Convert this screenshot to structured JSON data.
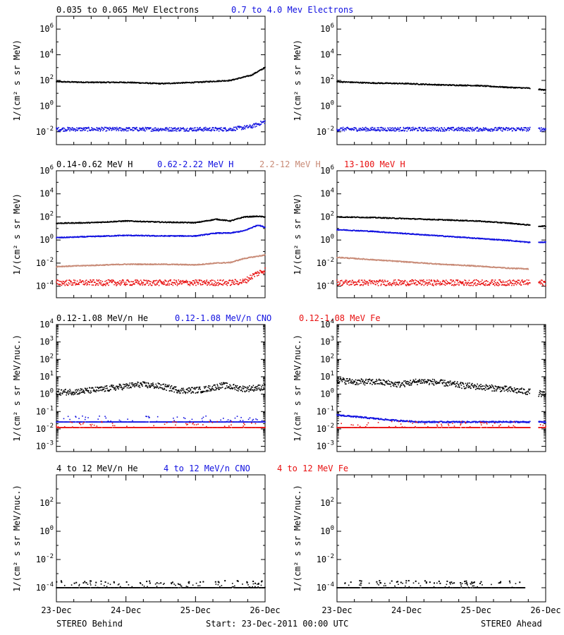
{
  "footer": {
    "left": "STEREO Behind",
    "center": "Start: 23-Dec-2011 00:00 UTC",
    "right": "STEREO Ahead"
  },
  "colors": {
    "black": "#000000",
    "blue": "#1010e0",
    "tan": "#c88a76",
    "red": "#e81010"
  },
  "x_tick_labels": [
    "23-Dec",
    "24-Dec",
    "25-Dec",
    "26-Dec"
  ],
  "chart_data": [
    {
      "type": "scatter",
      "spacecraft": "STEREO Behind",
      "row": 1,
      "ylabel": "1/(cm² s sr MeV)",
      "yscale": "log",
      "ylim_exp": [
        -3,
        7
      ],
      "ytick_exps": [
        -2,
        0,
        2,
        4,
        6
      ],
      "xlim_days": [
        0,
        3.0
      ],
      "series": [
        {
          "name": "0.035 to 0.065 MeV Electrons",
          "color": "black",
          "x": [
            0,
            0.5,
            1.0,
            1.5,
            2.0,
            2.5,
            2.8,
            3.0
          ],
          "y_exp": [
            1.9,
            1.85,
            1.85,
            1.75,
            1.85,
            2.0,
            2.4,
            3.0
          ]
        },
        {
          "name": "0.7 to 4.0 Mev Electrons",
          "color": "blue",
          "x": [
            0,
            0.5,
            1.0,
            1.5,
            2.0,
            2.5,
            2.8,
            3.0
          ],
          "y_exp": [
            -1.8,
            -1.8,
            -1.8,
            -1.8,
            -1.8,
            -1.8,
            -1.6,
            -1.2
          ]
        }
      ]
    },
    {
      "type": "scatter",
      "spacecraft": "STEREO Ahead",
      "row": 1,
      "ylabel": "1/(cm² s sr MeV)",
      "yscale": "log",
      "ylim_exp": [
        -3,
        7
      ],
      "ytick_exps": [
        -2,
        0,
        2,
        4,
        6
      ],
      "xlim_days": [
        0,
        3.0
      ],
      "series": [
        {
          "name": "0.035 to 0.065 MeV Electrons",
          "color": "black",
          "x": [
            0,
            0.5,
            1.0,
            1.5,
            2.0,
            2.5,
            2.75,
            2.9,
            3.0
          ],
          "y_exp": [
            1.9,
            1.8,
            1.75,
            1.65,
            1.6,
            1.45,
            1.4,
            1.3,
            1.25
          ]
        },
        {
          "name": "0.7 to 4.0 Mev Electrons",
          "color": "blue",
          "x": [
            0,
            0.5,
            1.0,
            1.5,
            2.0,
            2.5,
            2.75,
            2.9,
            3.0
          ],
          "y_exp": [
            -1.8,
            -1.8,
            -1.8,
            -1.8,
            -1.8,
            -1.8,
            -1.8,
            -1.8,
            -1.8
          ]
        }
      ]
    },
    {
      "type": "scatter",
      "spacecraft": "STEREO Behind",
      "row": 2,
      "ylabel": "1/(cm² s sr MeV)",
      "yscale": "log",
      "ylim_exp": [
        -5,
        6
      ],
      "ytick_exps": [
        -4,
        -2,
        0,
        2,
        4,
        6
      ],
      "xlim_days": [
        0,
        3.0
      ],
      "series": [
        {
          "name": "0.14-0.62 MeV H",
          "color": "black",
          "x": [
            0,
            0.5,
            1.0,
            1.5,
            2.0,
            2.3,
            2.5,
            2.7,
            2.9,
            3.0
          ],
          "y_exp": [
            1.45,
            1.5,
            1.65,
            1.55,
            1.5,
            1.8,
            1.65,
            2.0,
            2.05,
            2.0
          ]
        },
        {
          "name": "0.62-2.22 MeV H",
          "color": "blue",
          "x": [
            0,
            0.5,
            1.0,
            1.5,
            2.0,
            2.3,
            2.5,
            2.7,
            2.9,
            3.0
          ],
          "y_exp": [
            0.2,
            0.3,
            0.4,
            0.35,
            0.35,
            0.6,
            0.6,
            0.8,
            1.3,
            1.1
          ]
        },
        {
          "name": "2.2-12 MeV H",
          "color": "tan",
          "x": [
            0,
            0.5,
            1.0,
            1.5,
            2.0,
            2.3,
            2.5,
            2.7,
            2.9,
            3.0
          ],
          "y_exp": [
            -2.3,
            -2.2,
            -2.1,
            -2.1,
            -2.15,
            -2.0,
            -1.95,
            -1.6,
            -1.4,
            -1.3
          ]
        },
        {
          "name": "13-100 MeV H",
          "color": "red",
          "x": [
            0,
            0.5,
            1.0,
            1.5,
            2.0,
            2.5,
            2.7,
            2.85,
            3.0
          ],
          "y_exp": [
            -3.7,
            -3.7,
            -3.7,
            -3.7,
            -3.7,
            -3.7,
            -3.6,
            -3.0,
            -2.6
          ]
        }
      ]
    },
    {
      "type": "scatter",
      "spacecraft": "STEREO Ahead",
      "row": 2,
      "ylabel": "1/(cm² s sr MeV)",
      "yscale": "log",
      "ylim_exp": [
        -5,
        6
      ],
      "ytick_exps": [
        -4,
        -2,
        0,
        2,
        4,
        6
      ],
      "xlim_days": [
        0,
        3.0
      ],
      "series": [
        {
          "name": "0.14-0.62 MeV H",
          "color": "black",
          "x": [
            0,
            0.5,
            1.0,
            1.5,
            2.0,
            2.5,
            2.75,
            2.9,
            3.0
          ],
          "y_exp": [
            2.0,
            1.95,
            1.85,
            1.75,
            1.65,
            1.45,
            1.3,
            1.2,
            1.2
          ]
        },
        {
          "name": "0.62-2.22 MeV H",
          "color": "blue",
          "x": [
            0,
            0.5,
            1.0,
            1.5,
            2.0,
            2.5,
            2.75,
            2.9,
            3.0
          ],
          "y_exp": [
            0.9,
            0.75,
            0.55,
            0.35,
            0.15,
            -0.05,
            -0.2,
            -0.2,
            -0.2
          ]
        },
        {
          "name": "2.2-12 MeV H",
          "color": "tan",
          "x": [
            0,
            0.5,
            1.0,
            1.5,
            2.0,
            2.5,
            2.75
          ],
          "y_exp": [
            -1.5,
            -1.7,
            -1.9,
            -2.1,
            -2.25,
            -2.45,
            -2.5
          ]
        },
        {
          "name": "13-100 MeV H",
          "color": "red",
          "x": [
            0,
            0.5,
            1.0,
            1.5,
            2.0,
            2.5,
            2.75,
            2.9,
            3.0
          ],
          "y_exp": [
            -3.7,
            -3.7,
            -3.7,
            -3.7,
            -3.7,
            -3.7,
            -3.7,
            -3.7,
            -3.7
          ]
        }
      ]
    },
    {
      "type": "scatter",
      "spacecraft": "STEREO Behind",
      "row": 3,
      "ylabel": "1/(cm² s sr MeV/nuc.)",
      "yscale": "log",
      "ylim_exp": [
        -3.3,
        4
      ],
      "ytick_exps": [
        -3,
        -2,
        -1,
        0,
        1,
        2,
        3,
        4
      ],
      "xlim_days": [
        0,
        3.0
      ],
      "series": [
        {
          "name": "0.12-1.08 MeV/n He",
          "color": "black",
          "x": [
            0,
            0.3,
            0.6,
            0.9,
            1.2,
            1.5,
            1.8,
            2.1,
            2.4,
            2.7,
            3.0
          ],
          "y_exp": [
            0.1,
            0.15,
            0.25,
            0.4,
            0.55,
            0.45,
            0.2,
            0.25,
            0.5,
            0.3,
            0.4
          ]
        },
        {
          "name": "0.12-1.08 MeV/n CNO",
          "color": "blue",
          "x": [
            0,
            3.0
          ],
          "y_exp": [
            -1.6,
            -1.6
          ]
        },
        {
          "name": "0.12-1.08 MeV Fe",
          "color": "red",
          "x": [
            0,
            3.0
          ],
          "y_exp": [
            -1.92,
            -1.92
          ]
        }
      ]
    },
    {
      "type": "scatter",
      "spacecraft": "STEREO Ahead",
      "row": 3,
      "ylabel": "1/(cm² s sr MeV/nuc.)",
      "yscale": "log",
      "ylim_exp": [
        -3.3,
        4
      ],
      "ytick_exps": [
        -3,
        -2,
        -1,
        0,
        1,
        2,
        3,
        4
      ],
      "xlim_days": [
        0,
        3.0
      ],
      "series": [
        {
          "name": "0.12-1.08 MeV/n He",
          "color": "black",
          "x": [
            0,
            0.3,
            0.6,
            0.9,
            1.2,
            1.5,
            1.8,
            2.1,
            2.4,
            2.7,
            2.85,
            3.0
          ],
          "y_exp": [
            0.8,
            0.7,
            0.7,
            0.55,
            0.75,
            0.65,
            0.5,
            0.4,
            0.3,
            0.15,
            0.1,
            -0.05
          ]
        },
        {
          "name": "0.12-1.08 MeV/n CNO",
          "color": "blue",
          "x": [
            0,
            0.4,
            0.8,
            1.2,
            3.0
          ],
          "y_exp": [
            -1.2,
            -1.35,
            -1.5,
            -1.6,
            -1.6
          ]
        },
        {
          "name": "0.12-1.08 MeV Fe",
          "color": "red",
          "x": [
            0,
            3.0
          ],
          "y_exp": [
            -1.92,
            -1.92
          ]
        }
      ]
    },
    {
      "type": "scatter",
      "spacecraft": "STEREO Behind",
      "row": 4,
      "ylabel": "1/(cm² s sr MeV/nuc.)",
      "yscale": "log",
      "ylim_exp": [
        -5,
        4
      ],
      "ytick_exps": [
        -4,
        -2,
        0,
        2
      ],
      "xlim_days": [
        0,
        3.0
      ],
      "series": [
        {
          "name": "4 to 12 MeV/n He",
          "color": "black",
          "x": [
            0,
            3.0
          ],
          "y_exp": [
            -4.0,
            -4.0
          ]
        },
        {
          "name": "4 to 12 MeV/n CNO",
          "color": "blue",
          "x": [],
          "y_exp": []
        },
        {
          "name": "4 to 12 MeV Fe",
          "color": "red",
          "x": [],
          "y_exp": []
        }
      ]
    },
    {
      "type": "scatter",
      "spacecraft": "STEREO Ahead",
      "row": 4,
      "ylabel": "1/(cm² s sr MeV/nuc.)",
      "yscale": "log",
      "ylim_exp": [
        -5,
        4
      ],
      "ytick_exps": [
        -4,
        -2,
        0,
        2
      ],
      "xlim_days": [
        0,
        3.0
      ],
      "series": [
        {
          "name": "4 to 12 MeV/n He",
          "color": "black",
          "x": [
            0,
            2.7
          ],
          "y_exp": [
            -4.0,
            -4.0
          ]
        },
        {
          "name": "4 to 12 MeV/n CNO",
          "color": "blue",
          "x": [],
          "y_exp": []
        },
        {
          "name": "4 to 12 MeV Fe",
          "color": "red",
          "x": [],
          "y_exp": []
        }
      ]
    }
  ]
}
